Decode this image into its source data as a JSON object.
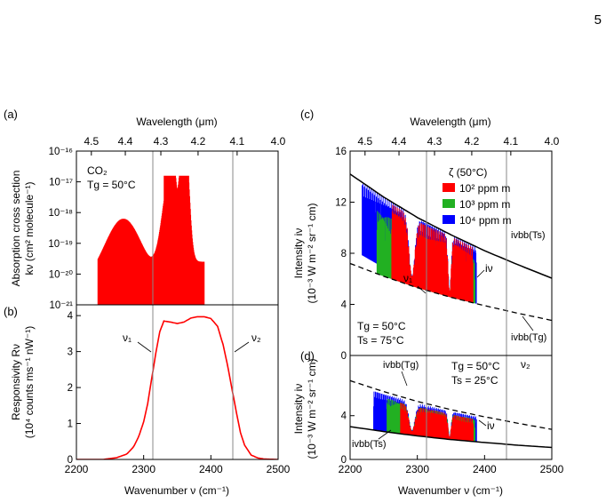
{
  "page": {
    "number": "5"
  },
  "chart_data": [
    {
      "panel": "(a)",
      "type": "line",
      "top_axis": {
        "label": "Wavelength (μm)",
        "ticks": [
          "4.5",
          "4.4",
          "4.3",
          "4.2",
          "4.1",
          "4.0"
        ]
      },
      "ylabel_line1": "Absorption cross section",
      "ylabel_line2": "kν (cm² molecule⁻¹)",
      "y_scale": "log",
      "ylim": [
        1e-21,
        1e-16
      ],
      "y_ticks": [
        "10⁻¹⁶",
        "10⁻¹⁷",
        "10⁻¹⁸",
        "10⁻¹⁹",
        "10⁻²⁰",
        "10⁻²¹"
      ],
      "annotation_line1": "CO₂",
      "annotation_line2": "Tg = 50°C",
      "series_color": "#ff0000"
    },
    {
      "panel": "(b)",
      "type": "line",
      "xlabel": "Wavenumber ν (cm⁻¹)",
      "x_ticks": [
        "2200",
        "2300",
        "2400",
        "2500"
      ],
      "xlim": [
        2200,
        2500
      ],
      "ylabel_line1": "Responsivity Rν",
      "ylabel_line2": "(10⁴ counts ms⁻¹ nW⁻¹)",
      "ylim": [
        0,
        4.3
      ],
      "y_ticks": [
        "0",
        "1",
        "2",
        "3",
        "4"
      ],
      "markers": [
        {
          "label": "ν₁",
          "x": 2315
        },
        {
          "label": "ν₂",
          "x": 2435
        }
      ],
      "series": [
        {
          "x": [
            2200,
            2240,
            2260,
            2275,
            2285,
            2293,
            2300,
            2306,
            2312,
            2318,
            2324,
            2330,
            2340,
            2350,
            2360,
            2370,
            2380,
            2390,
            2400,
            2410,
            2418,
            2425,
            2432,
            2438,
            2444,
            2450,
            2460,
            2470,
            2480,
            2500
          ],
          "y": [
            0.0,
            0.0,
            0.05,
            0.15,
            0.35,
            0.65,
            1.05,
            1.55,
            2.25,
            2.95,
            3.55,
            3.85,
            3.82,
            3.78,
            3.82,
            3.93,
            3.97,
            3.97,
            3.92,
            3.7,
            3.2,
            2.6,
            1.9,
            1.3,
            0.75,
            0.4,
            0.12,
            0.04,
            0.01,
            0.0
          ]
        }
      ]
    },
    {
      "panel": "(c)",
      "type": "area",
      "top_axis": {
        "label": "Wavelength (μm)",
        "ticks": [
          "4.5",
          "4.4",
          "4.3",
          "4.2",
          "4.1",
          "4.0"
        ]
      },
      "ylabel_line1": "Intensity iν",
      "ylabel_line2": "(10⁻³ W m⁻² sr⁻¹ cm)",
      "ylim": [
        0,
        16
      ],
      "y_ticks": [
        "16",
        "12",
        "8",
        "4",
        "0"
      ],
      "legend_title": "ζ (50°C)",
      "legend": [
        {
          "label": "10² ppm m",
          "color": "#ff0000"
        },
        {
          "label": "10³ ppm m",
          "color": "#22b022"
        },
        {
          "label": "10⁴ ppm m",
          "color": "#0000ff"
        }
      ],
      "curve_labels": {
        "upper": "ivbb(Ts)",
        "lower": "ivbb(Tg)",
        "signal": "iν",
        "v1": "ν₁"
      },
      "annotation_line1": "Tg = 50°C",
      "annotation_line2": "Ts = 75°C",
      "ivbb_Ts": {
        "x": [
          2200,
          2250,
          2300,
          2350,
          2400,
          2450,
          2500
        ],
        "y": [
          14.2,
          12.4,
          10.8,
          9.45,
          8.2,
          7.1,
          6.05
        ]
      },
      "ivbb_Tg": {
        "x": [
          2200,
          2250,
          2300,
          2350,
          2400,
          2450,
          2500
        ],
        "y": [
          7.2,
          6.2,
          5.3,
          4.55,
          3.9,
          3.3,
          2.75
        ]
      }
    },
    {
      "panel": "(d)",
      "type": "area",
      "xlabel": "Wavenumber ν (cm⁻¹)",
      "x_ticks": [
        "2200",
        "2300",
        "2400",
        "2500"
      ],
      "xlim": [
        2200,
        2500
      ],
      "ylabel_line1": "Intensity iν",
      "ylabel_line2": "(10⁻³ W m⁻² sr⁻¹ cm)",
      "ylim": [
        0,
        9.5
      ],
      "y_ticks": [
        "0",
        "4"
      ],
      "curve_labels": {
        "upper": "ivbb(Tg)",
        "lower": "ivbb(Ts)",
        "signal": "iν",
        "v2": "ν₂"
      },
      "annotation_line1": "Tg = 50°C",
      "annotation_line2": "Ts = 25°C",
      "ivbb_Tg": {
        "x": [
          2200,
          2250,
          2300,
          2350,
          2400,
          2450,
          2500
        ],
        "y": [
          7.2,
          6.2,
          5.3,
          4.55,
          3.9,
          3.3,
          2.75
        ]
      },
      "ivbb_Ts": {
        "x": [
          2200,
          2250,
          2300,
          2350,
          2400,
          2450,
          2500
        ],
        "y": [
          3.0,
          2.55,
          2.15,
          1.82,
          1.55,
          1.3,
          1.1
        ]
      }
    }
  ]
}
